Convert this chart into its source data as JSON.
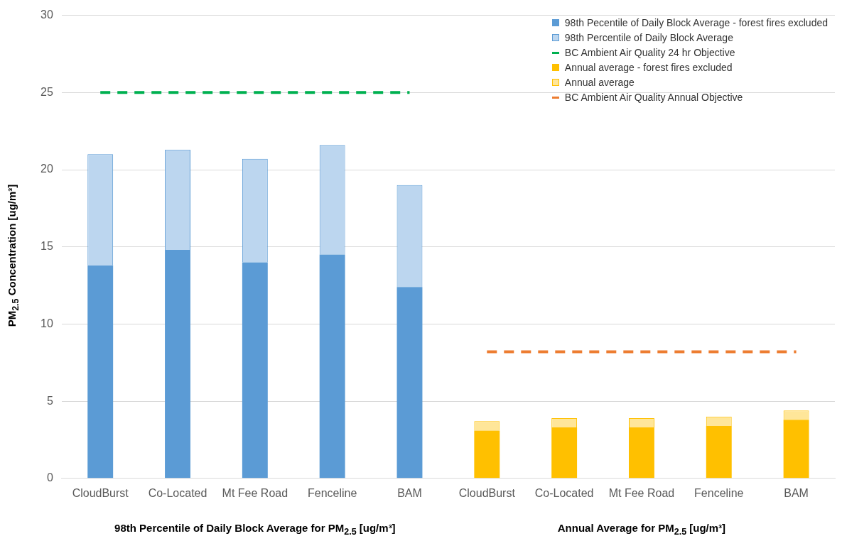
{
  "chart_data": {
    "type": "bar",
    "stacked": true,
    "ylabel": "PM$_{2.5}$ Concentration [ug/m³]",
    "categories": [
      "CloudBurst",
      "Co-Located",
      "Mt Fee Road",
      "Fenceline",
      "BAM",
      "CloudBurst",
      "Co-Located",
      "Mt Fee Road",
      "Fenceline",
      "BAM"
    ],
    "series": [
      {
        "name": "98th Pecentile of Daily Block Average - forest fires excluded",
        "color": "#5b9bd5",
        "values": [
          13.8,
          14.8,
          14.0,
          14.5,
          12.4,
          null,
          null,
          null,
          null,
          null
        ]
      },
      {
        "name": "98th Percentile of Daily Block Average",
        "color": "#bcd6ef",
        "values": [
          7.2,
          6.5,
          6.7,
          7.1,
          6.6,
          null,
          null,
          null,
          null,
          null
        ]
      },
      {
        "name": "BC Ambient Air Quality 24 hr Objective",
        "type": "line",
        "color": "#00b050",
        "line_style": "dashed",
        "marker": "none",
        "values": [
          25,
          25,
          25,
          25,
          25,
          null,
          null,
          null,
          null,
          null
        ]
      },
      {
        "name": "Annual average - forest fires excluded",
        "color": "#ffc000",
        "values": [
          null,
          null,
          null,
          null,
          null,
          3.1,
          3.3,
          3.3,
          3.4,
          3.8
        ]
      },
      {
        "name": "Annual average",
        "color": "#ffe699",
        "values": [
          null,
          null,
          null,
          null,
          null,
          0.6,
          0.6,
          0.6,
          0.6,
          0.6
        ]
      },
      {
        "name": "BC Ambient Air Quality Annual Objective",
        "type": "line",
        "color": "#ed7d31",
        "line_style": "dashed",
        "marker": "none",
        "values": [
          null,
          null,
          null,
          null,
          null,
          8.2,
          8.2,
          8.2,
          8.2,
          8.2
        ]
      }
    ],
    "ylim": [
      0,
      30
    ],
    "yticks": [
      0,
      5,
      10,
      15,
      20,
      25,
      30
    ],
    "grid": "y",
    "legend": "top right",
    "annotations": [
      "98th Percentile of Daily Block Average for PM$_{2.5}$ [ug/m³]",
      "Annual Average for PM$_{2.5}$ [ug/m³]"
    ]
  }
}
